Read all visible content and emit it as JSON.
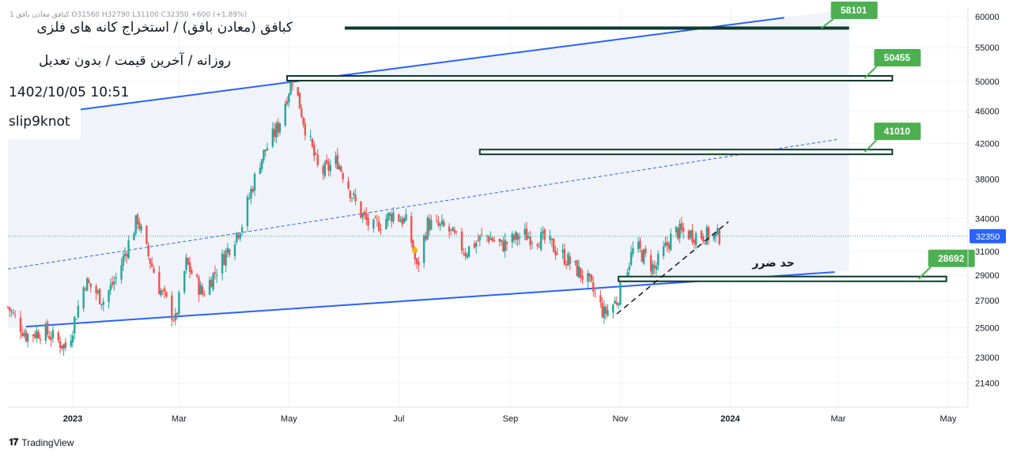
{
  "header": {
    "ohlc_line": "1 کبافق معادن بافق  O31560  H32790  L31100  C32350  +600 (+1.89%)",
    "title": "کبافق (معادن بافق) / استخراج کانه های فلزی",
    "subtitle": "روزانه / آخرین قیمت / بدون تعدیل",
    "datetime": "1402/10/05 10:51",
    "author": "slip9knot"
  },
  "footer": {
    "brand": "TradingView",
    "logo": "tradingview-logo-icon"
  },
  "colors": {
    "up": "#26a69a",
    "down": "#ef5350",
    "channel": "#2962ff",
    "zone_fill": "#f0f3fa",
    "level_box": "#0d3b2e",
    "price_tag": "#4caf50",
    "last_price_tag": "#2962ff"
  },
  "chart_data": {
    "type": "candlestick",
    "symbol": "کبافق",
    "timeframe": "daily",
    "last_price": 32350,
    "ylim": [
      20000,
      61500
    ],
    "yscale": "log",
    "y_ticks": [
      21400,
      23000,
      25000,
      27000,
      29000,
      31000,
      34000,
      38000,
      42000,
      46000,
      50000,
      55000,
      60000
    ],
    "x_ticks": [
      {
        "date": "2023-01-01",
        "label": "2023"
      },
      {
        "date": "2023-03-01",
        "label": "Mar"
      },
      {
        "date": "2023-05-01",
        "label": "May"
      },
      {
        "date": "2023-07-01",
        "label": "Jul"
      },
      {
        "date": "2023-09-01",
        "label": "Sep"
      },
      {
        "date": "2023-11-01",
        "label": "Nov"
      },
      {
        "date": "2024-01-01",
        "label": "2024"
      },
      {
        "date": "2024-03-01",
        "label": "Mar"
      },
      {
        "date": "2024-05-01",
        "label": "May"
      }
    ],
    "xlim": [
      "2022-11-26",
      "2024-05-12"
    ],
    "price_path": [
      [
        "2022-11-26",
        26500
      ],
      [
        "2022-12-06",
        24500
      ],
      [
        "2022-12-16",
        24800
      ],
      [
        "2022-12-29",
        23600
      ],
      [
        "2023-01-08",
        28500
      ],
      [
        "2023-01-18",
        27000
      ],
      [
        "2023-01-26",
        29000
      ],
      [
        "2023-02-06",
        34000
      ],
      [
        "2023-02-10",
        31500
      ],
      [
        "2023-02-18",
        28000
      ],
      [
        "2023-02-27",
        25500
      ],
      [
        "2023-03-05",
        30000
      ],
      [
        "2023-03-14",
        27500
      ],
      [
        "2023-03-24",
        30000
      ],
      [
        "2023-04-05",
        33500
      ],
      [
        "2023-04-15",
        40000
      ],
      [
        "2023-04-25",
        44000
      ],
      [
        "2023-05-03",
        50500
      ],
      [
        "2023-05-10",
        44000
      ],
      [
        "2023-05-18",
        38500
      ],
      [
        "2023-05-28",
        40000
      ],
      [
        "2023-06-08",
        35000
      ],
      [
        "2023-06-16",
        33000
      ],
      [
        "2023-06-28",
        34500
      ],
      [
        "2023-07-06",
        33500
      ],
      [
        "2023-07-11",
        29500
      ],
      [
        "2023-07-17",
        33500
      ],
      [
        "2023-07-28",
        33000
      ],
      [
        "2023-08-07",
        31000
      ],
      [
        "2023-08-18",
        32500
      ],
      [
        "2023-08-27",
        31500
      ],
      [
        "2023-09-08",
        32500
      ],
      [
        "2023-09-20",
        32000
      ],
      [
        "2023-10-01",
        30500
      ],
      [
        "2023-10-14",
        28500
      ],
      [
        "2023-10-23",
        26000
      ],
      [
        "2023-10-30",
        27000
      ],
      [
        "2023-11-09",
        31500
      ],
      [
        "2023-11-20",
        29500
      ],
      [
        "2023-12-01",
        32800
      ],
      [
        "2023-12-12",
        32500
      ],
      [
        "2023-12-26",
        32350
      ]
    ],
    "series": [
      {
        "name": "",
        "kind": "channel-line",
        "from": [
          "2022-11-26",
          25000
        ],
        "to": [
          "2024-05-12",
          30000
        ]
      },
      {
        "name": "",
        "kind": "channel-line",
        "from": [
          "2022-11-26",
          45000
        ],
        "to": [
          "2024-05-12",
          64000
        ]
      },
      {
        "name": "",
        "kind": "midline-dashed",
        "from": [
          "2022-11-26",
          29500
        ],
        "to": [
          "2024-03-01",
          42500
        ]
      },
      {
        "name": "",
        "kind": "trendline-dashed",
        "from": [
          "2023-10-30",
          26000
        ],
        "to": [
          "2023-12-31",
          33700
        ]
      }
    ],
    "levels": [
      {
        "value": 58101,
        "label": "58101",
        "from": "2023-06-01",
        "to": "2024-03-07",
        "style": "line"
      },
      {
        "value": 50455,
        "label": "50455",
        "from": "2023-04-30",
        "to": "2024-03-31",
        "style": "box"
      },
      {
        "value": 41010,
        "label": "41010",
        "from": "2023-08-15",
        "to": "2024-03-31",
        "style": "box"
      },
      {
        "value": 28692,
        "label": "28692",
        "from": "2023-10-31",
        "to": "2024-04-30",
        "style": "box"
      }
    ],
    "annotations": [
      {
        "text": "حد ضرر",
        "date": "2024-01-25",
        "value": 29700
      },
      {
        "text": "",
        "kind": "marker-dot",
        "date": "2023-07-10",
        "value": 31100,
        "color": "#ffb300"
      }
    ],
    "grid": true,
    "legend": "none"
  }
}
